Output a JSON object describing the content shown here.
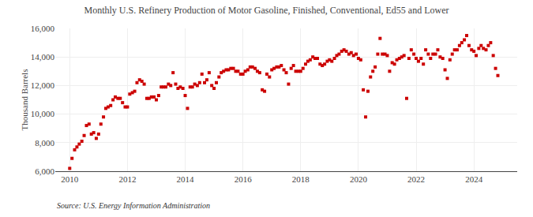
{
  "chart_data": {
    "type": "scatter",
    "title": "Monthly U.S. Refinery Production of Motor Gasoline, Finished, Conventional, Ed55 and Lower",
    "ylabel": "Thousand Barrels",
    "source": "Source: U.S. Energy Information Administration",
    "color": "#cc0000",
    "marker": "square",
    "grid": true,
    "xlim": [
      2009.5,
      2025.5
    ],
    "xticks": [
      2010,
      2012,
      2014,
      2016,
      2018,
      2020,
      2022,
      2024
    ],
    "ylim": [
      6000,
      16000
    ],
    "yticks": [
      {
        "value": 6000,
        "label": "6,000"
      },
      {
        "value": 8000,
        "label": "8,000"
      },
      {
        "value": 10000,
        "label": "10,000"
      },
      {
        "value": 12000,
        "label": "12,000"
      },
      {
        "value": 14000,
        "label": "14,000"
      },
      {
        "value": 16000,
        "label": "16,000"
      }
    ],
    "x": [
      2010.0,
      2010.08,
      2010.17,
      2010.25,
      2010.33,
      2010.42,
      2010.5,
      2010.58,
      2010.67,
      2010.75,
      2010.83,
      2010.92,
      2011.0,
      2011.08,
      2011.17,
      2011.25,
      2011.33,
      2011.42,
      2011.5,
      2011.58,
      2011.67,
      2011.75,
      2011.83,
      2011.92,
      2012.0,
      2012.08,
      2012.17,
      2012.25,
      2012.33,
      2012.42,
      2012.5,
      2012.58,
      2012.67,
      2012.75,
      2012.83,
      2012.92,
      2013.0,
      2013.08,
      2013.17,
      2013.25,
      2013.33,
      2013.42,
      2013.5,
      2013.58,
      2013.67,
      2013.75,
      2013.83,
      2013.92,
      2014.0,
      2014.08,
      2014.17,
      2014.25,
      2014.33,
      2014.42,
      2014.5,
      2014.58,
      2014.67,
      2014.75,
      2014.83,
      2014.92,
      2015.0,
      2015.08,
      2015.17,
      2015.25,
      2015.33,
      2015.42,
      2015.5,
      2015.58,
      2015.67,
      2015.75,
      2015.83,
      2015.92,
      2016.0,
      2016.08,
      2016.17,
      2016.25,
      2016.33,
      2016.42,
      2016.5,
      2016.58,
      2016.67,
      2016.75,
      2016.83,
      2016.92,
      2017.0,
      2017.08,
      2017.17,
      2017.25,
      2017.33,
      2017.42,
      2017.5,
      2017.58,
      2017.67,
      2017.75,
      2017.83,
      2017.92,
      2018.0,
      2018.08,
      2018.17,
      2018.25,
      2018.33,
      2018.42,
      2018.5,
      2018.58,
      2018.67,
      2018.75,
      2018.83,
      2018.92,
      2019.0,
      2019.08,
      2019.17,
      2019.25,
      2019.33,
      2019.42,
      2019.5,
      2019.58,
      2019.67,
      2019.75,
      2019.83,
      2019.92,
      2020.0,
      2020.08,
      2020.17,
      2020.25,
      2020.33,
      2020.42,
      2020.5,
      2020.58,
      2020.67,
      2020.75,
      2020.83,
      2020.92,
      2021.0,
      2021.08,
      2021.17,
      2021.25,
      2021.33,
      2021.42,
      2021.5,
      2021.58,
      2021.67,
      2021.75,
      2021.83,
      2021.92,
      2022.0,
      2022.08,
      2022.17,
      2022.25,
      2022.33,
      2022.42,
      2022.5,
      2022.58,
      2022.67,
      2022.75,
      2022.83,
      2022.92,
      2023.0,
      2023.08,
      2023.17,
      2023.25,
      2023.33,
      2023.42,
      2023.5,
      2023.58,
      2023.67,
      2023.75,
      2023.83,
      2023.92,
      2024.0,
      2024.08,
      2024.17,
      2024.25,
      2024.33,
      2024.42,
      2024.5,
      2024.58,
      2024.67,
      2024.75,
      2024.83
    ],
    "values": [
      6200,
      6900,
      7500,
      7700,
      7900,
      8100,
      8500,
      9200,
      9300,
      8600,
      8700,
      8300,
      8600,
      9300,
      9800,
      10400,
      10500,
      10600,
      11000,
      11200,
      11100,
      11100,
      10800,
      10500,
      10500,
      11400,
      11500,
      11600,
      12200,
      12400,
      12300,
      12100,
      11100,
      11100,
      11200,
      11200,
      11000,
      11300,
      11900,
      11900,
      11900,
      12100,
      12000,
      12900,
      12100,
      11800,
      11900,
      11800,
      11300,
      10400,
      11900,
      11900,
      12100,
      12000,
      12200,
      12800,
      12200,
      12400,
      12900,
      12000,
      11800,
      12200,
      12600,
      12900,
      13000,
      13100,
      13100,
      13200,
      13200,
      13000,
      13000,
      12800,
      12800,
      13000,
      13100,
      13300,
      13300,
      13200,
      13000,
      12900,
      11700,
      11600,
      12800,
      12600,
      13100,
      13200,
      13300,
      13300,
      13400,
      13100,
      12900,
      12100,
      13200,
      13400,
      13000,
      13000,
      13000,
      13200,
      13500,
      13700,
      13800,
      14000,
      13900,
      13900,
      13500,
      13400,
      13500,
      13700,
      13800,
      13700,
      13900,
      14100,
      14200,
      14400,
      14500,
      14400,
      14200,
      14300,
      14100,
      14200,
      13900,
      13800,
      11700,
      9800,
      11600,
      12600,
      13000,
      13300,
      14200,
      15300,
      14200,
      14200,
      14100,
      13000,
      13600,
      13500,
      13800,
      13900,
      14000,
      14100,
      11100,
      13900,
      14500,
      14200,
      13900,
      13700,
      13900,
      13500,
      14500,
      14200,
      13900,
      14200,
      14200,
      14500,
      14000,
      13900,
      13100,
      12500,
      13800,
      14200,
      14500,
      14500,
      14800,
      15000,
      15200,
      15500,
      14800,
      14500,
      14400,
      14100,
      14600,
      14800,
      14600,
      14500,
      14800,
      15000,
      14100,
      13200,
      12700
    ]
  }
}
